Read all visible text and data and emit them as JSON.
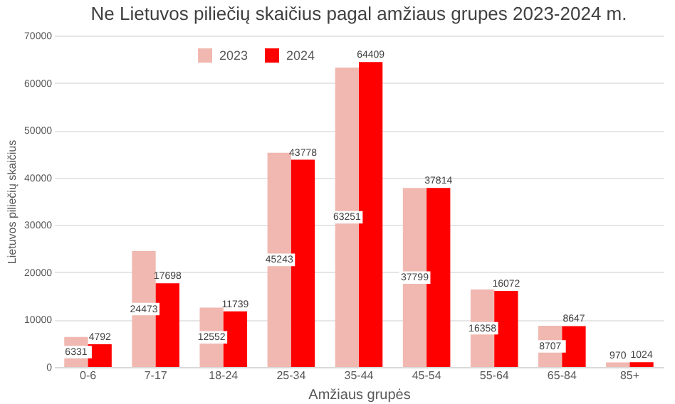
{
  "chart_data": {
    "type": "bar",
    "title": "Ne Lietuvos piliečių skaičius pagal amžiaus grupes 2023-2024 m.",
    "xlabel": "Amžiaus grupės",
    "ylabel": "Lietuvos piliečių skaičius",
    "categories": [
      "0-6",
      "7-17",
      "18-24",
      "25-34",
      "35-44",
      "45-54",
      "55-64",
      "65-84",
      "85+"
    ],
    "series": [
      {
        "name": "2023",
        "color": "#f0b8b0",
        "values": [
          6331,
          24473,
          12552,
          45243,
          63251,
          37799,
          16358,
          8707,
          970
        ]
      },
      {
        "name": "2024",
        "color": "#ff0000",
        "values": [
          4792,
          17698,
          11739,
          43778,
          64409,
          37814,
          16072,
          8647,
          1024
        ]
      }
    ],
    "ylim": [
      0,
      70000
    ],
    "yticks": [
      0,
      10000,
      20000,
      30000,
      40000,
      50000,
      60000,
      70000
    ],
    "grid": "y",
    "legend": "top left",
    "data_labels": true
  }
}
